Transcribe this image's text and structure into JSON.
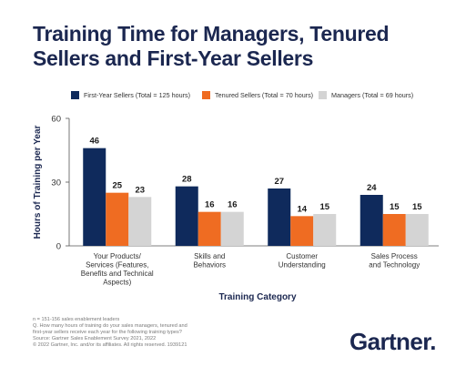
{
  "title_lines": [
    "Training Time for Managers, Tenured",
    "Sellers and First-Year Sellers"
  ],
  "chart_data": {
    "type": "bar",
    "title": "Training Time for Managers, Tenured Sellers and First-Year Sellers",
    "categories": [
      [
        "Your Products/",
        "Services (Features,",
        "Benefits and Technical",
        "Aspects)"
      ],
      [
        "Skills and",
        "Behaviors"
      ],
      [
        "Customer",
        "Understanding"
      ],
      [
        "Sales Process",
        "and Technology"
      ]
    ],
    "series": [
      {
        "name": "First-Year Sellers (Total = 125 hours)",
        "color": "#0f2a5c",
        "values": [
          46,
          28,
          27,
          24
        ]
      },
      {
        "name": "Tenured Sellers (Total = 70 hours)",
        "color": "#ef6c22",
        "values": [
          25,
          16,
          14,
          15
        ]
      },
      {
        "name": "Managers (Total = 69 hours)",
        "color": "#d4d4d4",
        "values": [
          23,
          16,
          15,
          15
        ]
      }
    ],
    "xlabel": "Training Category",
    "ylabel": "Hours of Training per Year",
    "ylim": [
      0,
      60
    ],
    "yticks": [
      0,
      30,
      60
    ],
    "legend_position": "top",
    "grid": false
  },
  "footnote": [
    "n = 151-156 sales enablement leaders",
    "Q. How many hours of training do your sales managers, tenured and",
    "first-year sellers receive each year for the following training types?",
    "Source: Gartner Sales Enablement Survey 2021, 2022",
    "© 2022 Gartner, Inc. and/or its affiliates. All rights reserved. 1939121"
  ],
  "brand": "Gartner"
}
